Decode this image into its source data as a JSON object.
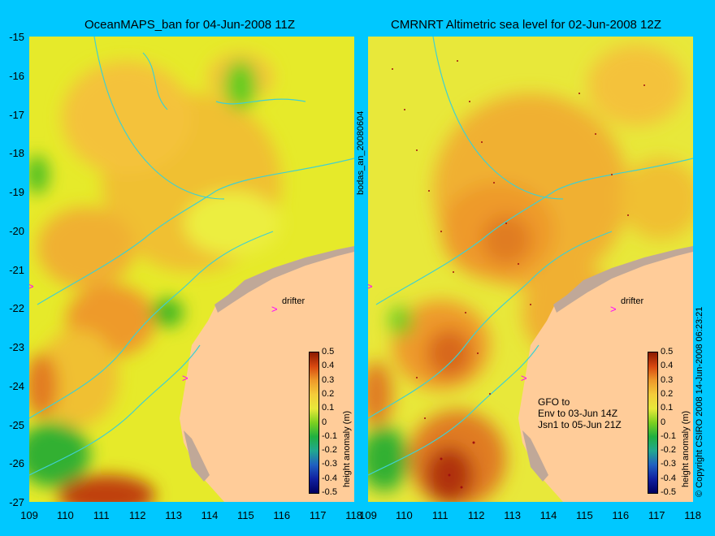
{
  "left_title": "OceanMAPS_ban for 04-Jun-2008 11Z",
  "right_title": "CMRNRT Altimetric sea level  for 02-Jun-2008 12Z",
  "y_ticks": [
    "-15",
    "-16",
    "-17",
    "-18",
    "-19",
    "-20",
    "-21",
    "-22",
    "-23",
    "-24",
    "-25",
    "-26",
    "-27"
  ],
  "x_ticks_left": [
    "109",
    "110",
    "111",
    "112",
    "113",
    "114",
    "115",
    "116",
    "117",
    "118"
  ],
  "x_ticks_right": [
    "109",
    "110",
    "111",
    "112",
    "113",
    "114",
    "115",
    "116",
    "117",
    "118"
  ],
  "middle_vertical_label": "bodas_an_20080604",
  "right_vertical_label": "© Copyright CSIRO 2008   14-Jun-2008 06:23:21",
  "colorbar_title": "height anomaly (m)",
  "colorbar_ticks": [
    "0.5",
    "0.4",
    "0.3",
    "0.2",
    "0.1",
    "0",
    "-0.1",
    "-0.2",
    "-0.3",
    "-0.4",
    "-0.5"
  ],
  "drifter_label": "drifter",
  "gfo_note": "GFO to\nEnv to 03-Jun 14Z\nJsn1 to 05-Jun 21Z",
  "colors": {
    "background": "#00c8ff",
    "land": "#ffcc99",
    "coast_grey": "#c0a898",
    "contour": "#40d0d0",
    "drifter": "#ff00ff"
  }
}
